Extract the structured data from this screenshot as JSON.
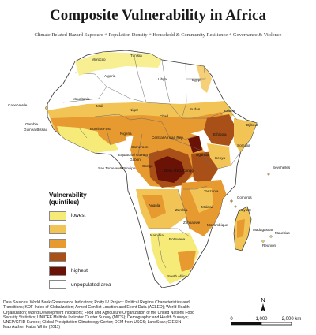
{
  "title": "Composite Vulnerability in Africa",
  "subtitle": "Climate Related Hazard Exposure + Population Density + Household & Community Resilience + Governance & Violence",
  "countries": {
    "morocco": "Morocco",
    "algeria": "Algeria",
    "tunisia": "Tunisia",
    "libya": "Libya",
    "egypt": "Egypt",
    "mauritania": "Mauritania",
    "mali": "Mali",
    "niger": "Niger",
    "chad": "Chad",
    "sudan": "Sudan",
    "cape_verde": "Cape Verde",
    "gambia": "Gambia",
    "guinea_bissau": "Guinea-Bissau",
    "burkina": "Burkina Faso",
    "nigeria": "Nigeria",
    "ethiopia": "Ethiopia",
    "eritrea": "Eritrea",
    "djibouti": "Djibouti",
    "somalia": "Somalia",
    "kenya": "Kenya",
    "uganda": "Uganda",
    "cameroon": "Cameroon",
    "car": "Central African Rep.",
    "drc": "Dem. Rep. Congo",
    "congo": "Congo",
    "gabon": "Gabon",
    "eq_guinea": "Equatorial Guinea",
    "sao_tome": "Sao Tome and Principe",
    "tanzania": "Tanzania",
    "angola": "Angola",
    "zambia": "Zambia",
    "malawi": "Malawi",
    "mozambique": "Mozambique",
    "zimbabwe": "Zimbabwe",
    "namibia": "Namibia",
    "botswana": "Botswana",
    "south_africa": "South Africa",
    "madagascar": "Madagascar",
    "seychelles": "Seychelles",
    "comoros": "Comoros",
    "mayotte": "Mayotte",
    "mauritius": "Mauritius",
    "reunion": "Reunion"
  },
  "legend": {
    "title_line1": "Vulnerability",
    "title_line2": "(quintiles)",
    "items": [
      {
        "label": "lowest",
        "color": "#f6eb78"
      },
      {
        "label": "",
        "color": "#f2c456"
      },
      {
        "label": "",
        "color": "#e79a30"
      },
      {
        "label": "",
        "color": "#a85018"
      },
      {
        "label": "highest",
        "color": "#6b1206"
      },
      {
        "label": "unpopulated area",
        "color": "#ffffff"
      }
    ]
  },
  "sources": [
    "Data Sources: World Bank Governance Indicators; Polity IV Project: Political Regime Characteristics and",
    "Transitions; KOF Index of Globalization; Armed Conflict Location and Event Data (ACLED); World Health",
    "Organization; World Development Indicators; Food and  Agriculture Organization of the United Nations Food",
    "Security Statistics; UNICEF Multiple Indicator Cluster Survey (MICS); Demographic and Health Surveys;",
    "UNEP/GRID-Europe; Global Precipitation Climatology Center; DEM from USGS; LandScan; CIESIN",
    "Map Author: Kaiba White (2011)"
  ],
  "north_label": "N",
  "scale": {
    "ticks": [
      "0",
      "1,000",
      "2,000 km"
    ]
  },
  "colors": {
    "ocean": "#ffffff",
    "border": "#6a6a6a",
    "unpopulated": "#ffffff"
  }
}
